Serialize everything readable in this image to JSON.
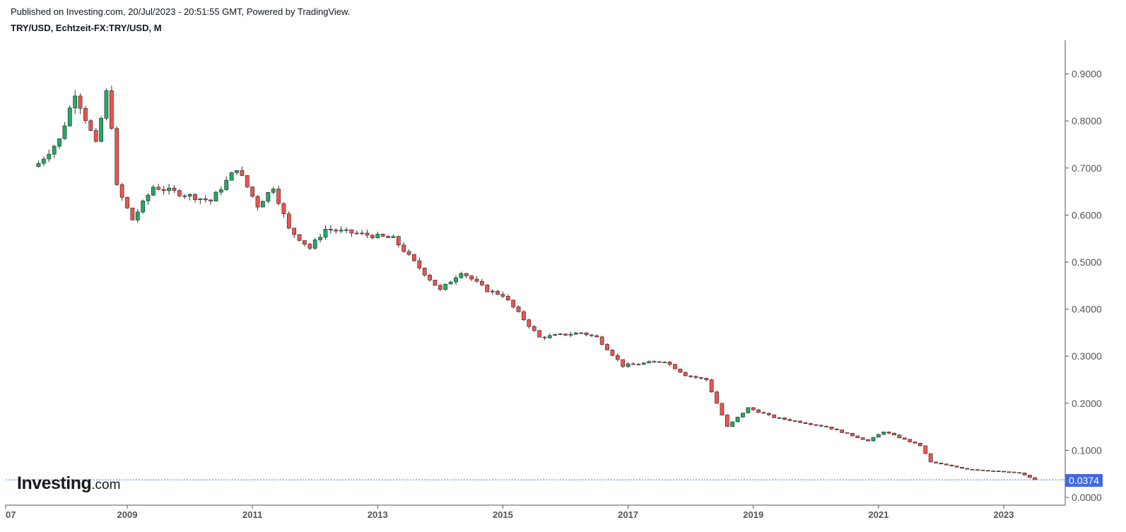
{
  "header": {
    "published": "Published on Investing.com, 20/Jul/2023 - 20:51:55 GMT, Powered by TradingView.",
    "symbol": "TRY/USD, Echtzeit-FX:TRY/USD, M"
  },
  "logo": {
    "main": "Investing",
    "suffix": ".com"
  },
  "chart_data": {
    "type": "candlestick",
    "interval": "M",
    "y_range": [
      0.0,
      0.98
    ],
    "y_ticks": [
      "0.9000",
      "0.8000",
      "0.7000",
      "0.6000",
      "0.5000",
      "0.4000",
      "0.3000",
      "0.2000",
      "0.1000",
      "0.0000"
    ],
    "x_ticks": [
      "07",
      "2009",
      "2011",
      "2013",
      "2015",
      "2017",
      "2019",
      "2021",
      "2023"
    ],
    "last_price": "0.0374",
    "colors": {
      "up": "#22ab66",
      "down": "#ef5350",
      "wick": "#333333",
      "price_line": "#4169e1"
    },
    "anchors": [
      {
        "date": "2007-08",
        "close": 0.71
      },
      {
        "date": "2007-12",
        "close": 0.76
      },
      {
        "date": "2008-03",
        "close": 0.86
      },
      {
        "date": "2008-07",
        "close": 0.75
      },
      {
        "date": "2008-09",
        "close": 0.86
      },
      {
        "date": "2008-10",
        "close": 0.79
      },
      {
        "date": "2008-11",
        "close": 0.66
      },
      {
        "date": "2009-02",
        "close": 0.59
      },
      {
        "date": "2009-06",
        "close": 0.66
      },
      {
        "date": "2010-05",
        "close": 0.63
      },
      {
        "date": "2010-10",
        "close": 0.7
      },
      {
        "date": "2011-02",
        "close": 0.62
      },
      {
        "date": "2011-05",
        "close": 0.66
      },
      {
        "date": "2011-08",
        "close": 0.57
      },
      {
        "date": "2011-12",
        "close": 0.53
      },
      {
        "date": "2012-03",
        "close": 0.57
      },
      {
        "date": "2013-04",
        "close": 0.55
      },
      {
        "date": "2013-08",
        "close": 0.5
      },
      {
        "date": "2014-01",
        "close": 0.44
      },
      {
        "date": "2014-05",
        "close": 0.48
      },
      {
        "date": "2014-10",
        "close": 0.44
      },
      {
        "date": "2015-01",
        "close": 0.43
      },
      {
        "date": "2015-08",
        "close": 0.34
      },
      {
        "date": "2016-04",
        "close": 0.35
      },
      {
        "date": "2016-07",
        "close": 0.34
      },
      {
        "date": "2016-12",
        "close": 0.28
      },
      {
        "date": "2017-08",
        "close": 0.29
      },
      {
        "date": "2017-12",
        "close": 0.26
      },
      {
        "date": "2018-04",
        "close": 0.25
      },
      {
        "date": "2018-08",
        "close": 0.15
      },
      {
        "date": "2018-12",
        "close": 0.19
      },
      {
        "date": "2019-05",
        "close": 0.17
      },
      {
        "date": "2020-03",
        "close": 0.15
      },
      {
        "date": "2020-11",
        "close": 0.12
      },
      {
        "date": "2021-02",
        "close": 0.14
      },
      {
        "date": "2021-09",
        "close": 0.11
      },
      {
        "date": "2021-11",
        "close": 0.075
      },
      {
        "date": "2022-06",
        "close": 0.06
      },
      {
        "date": "2023-04",
        "close": 0.052
      },
      {
        "date": "2023-07",
        "close": 0.0374
      }
    ]
  }
}
